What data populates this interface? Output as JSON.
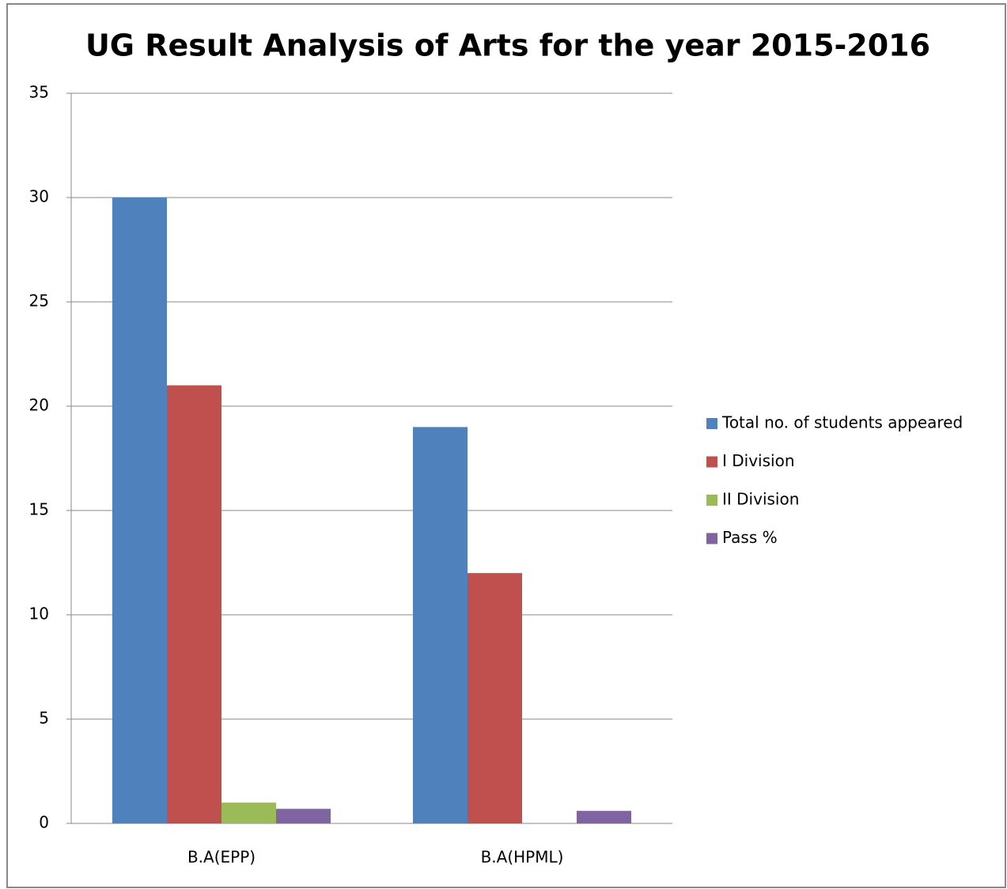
{
  "chart_data": {
    "type": "bar",
    "title": "UG Result Analysis of Arts for the year 2015-2016",
    "categories": [
      "B.A(EPP)",
      "B.A(HPML)"
    ],
    "series": [
      {
        "name": "Total no. of students appeared",
        "color": "#4f81bd",
        "values": [
          30,
          19
        ]
      },
      {
        "name": "I Division",
        "color": "#c0504d",
        "values": [
          21,
          12
        ]
      },
      {
        "name": "II Division",
        "color": "#9bbb59",
        "values": [
          1,
          0
        ]
      },
      {
        "name": "Pass %",
        "color": "#8064a2",
        "values": [
          0.7,
          0.6
        ]
      }
    ],
    "ylim": [
      0,
      35
    ],
    "yticks": [
      0,
      5,
      10,
      15,
      20,
      25,
      30,
      35
    ],
    "grid": true,
    "legend": "right"
  }
}
